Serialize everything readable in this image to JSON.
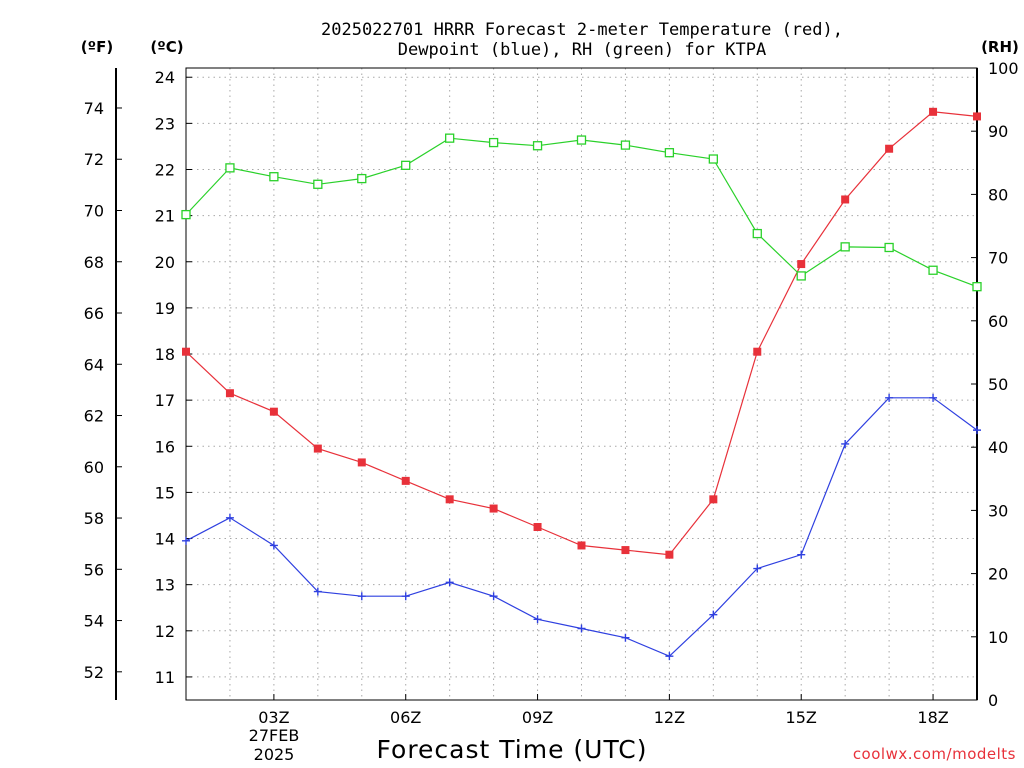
{
  "chart_data": {
    "type": "line",
    "title_lines": [
      "2025022701 HRRR Forecast 2-meter Temperature (red),",
      "Dewpoint (blue), RH (green) for KTPA"
    ],
    "xlabel": "Forecast Time (UTC)",
    "x": [
      1,
      2,
      3,
      4,
      5,
      6,
      7,
      8,
      9,
      10,
      11,
      12,
      13,
      14,
      15,
      16,
      17,
      18,
      19
    ],
    "xlim": [
      1,
      19
    ],
    "x_ticks": [
      {
        "x": 3,
        "label": "03Z"
      },
      {
        "x": 6,
        "label": "06Z"
      },
      {
        "x": 9,
        "label": "09Z"
      },
      {
        "x": 12,
        "label": "12Z"
      },
      {
        "x": 15,
        "label": "15Z"
      },
      {
        "x": 18,
        "label": "18Z"
      }
    ],
    "date_label_lines": [
      "27FEB",
      "2025"
    ],
    "axes": {
      "fahrenheit": {
        "unit_label": "(ºF)",
        "ticks": [
          52,
          54,
          56,
          58,
          60,
          62,
          64,
          66,
          68,
          70,
          72,
          74
        ]
      },
      "celsius": {
        "unit_label": "(ºC)",
        "ylim": [
          10.5,
          24.2
        ],
        "ticks": [
          11,
          12,
          13,
          14,
          15,
          16,
          17,
          18,
          19,
          20,
          21,
          22,
          23,
          24
        ]
      },
      "rh": {
        "unit_label": "(RH)",
        "ylim": [
          0,
          100
        ],
        "ticks": [
          0,
          10,
          20,
          30,
          40,
          50,
          60,
          70,
          80,
          90,
          100
        ]
      }
    },
    "grid": true,
    "series": [
      {
        "name": "Temperature",
        "color": "#e8313a",
        "marker": "filled-square",
        "axis": "celsius",
        "values": [
          18.05,
          17.15,
          16.75,
          15.95,
          15.65,
          15.25,
          14.85,
          14.65,
          14.25,
          13.85,
          13.75,
          13.65,
          14.85,
          18.05,
          19.95,
          21.35,
          22.45,
          23.25,
          23.15
        ]
      },
      {
        "name": "Dewpoint",
        "color": "#2f40e0",
        "marker": "plus",
        "axis": "celsius",
        "values": [
          13.95,
          14.45,
          13.85,
          12.85,
          12.75,
          12.75,
          13.05,
          12.75,
          12.25,
          12.05,
          11.85,
          11.45,
          12.35,
          13.35,
          13.65,
          16.05,
          17.05,
          17.05,
          16.35
        ]
      },
      {
        "name": "RH",
        "color": "#2ad12a",
        "marker": "open-square",
        "axis": "rh",
        "values": [
          76.8,
          84.2,
          82.8,
          81.6,
          82.5,
          84.6,
          88.9,
          88.2,
          87.7,
          88.6,
          87.8,
          86.6,
          85.6,
          73.8,
          67.1,
          71.7,
          71.6,
          68.0,
          65.4
        ]
      }
    ]
  },
  "credit": "coolwx.com/modelts"
}
